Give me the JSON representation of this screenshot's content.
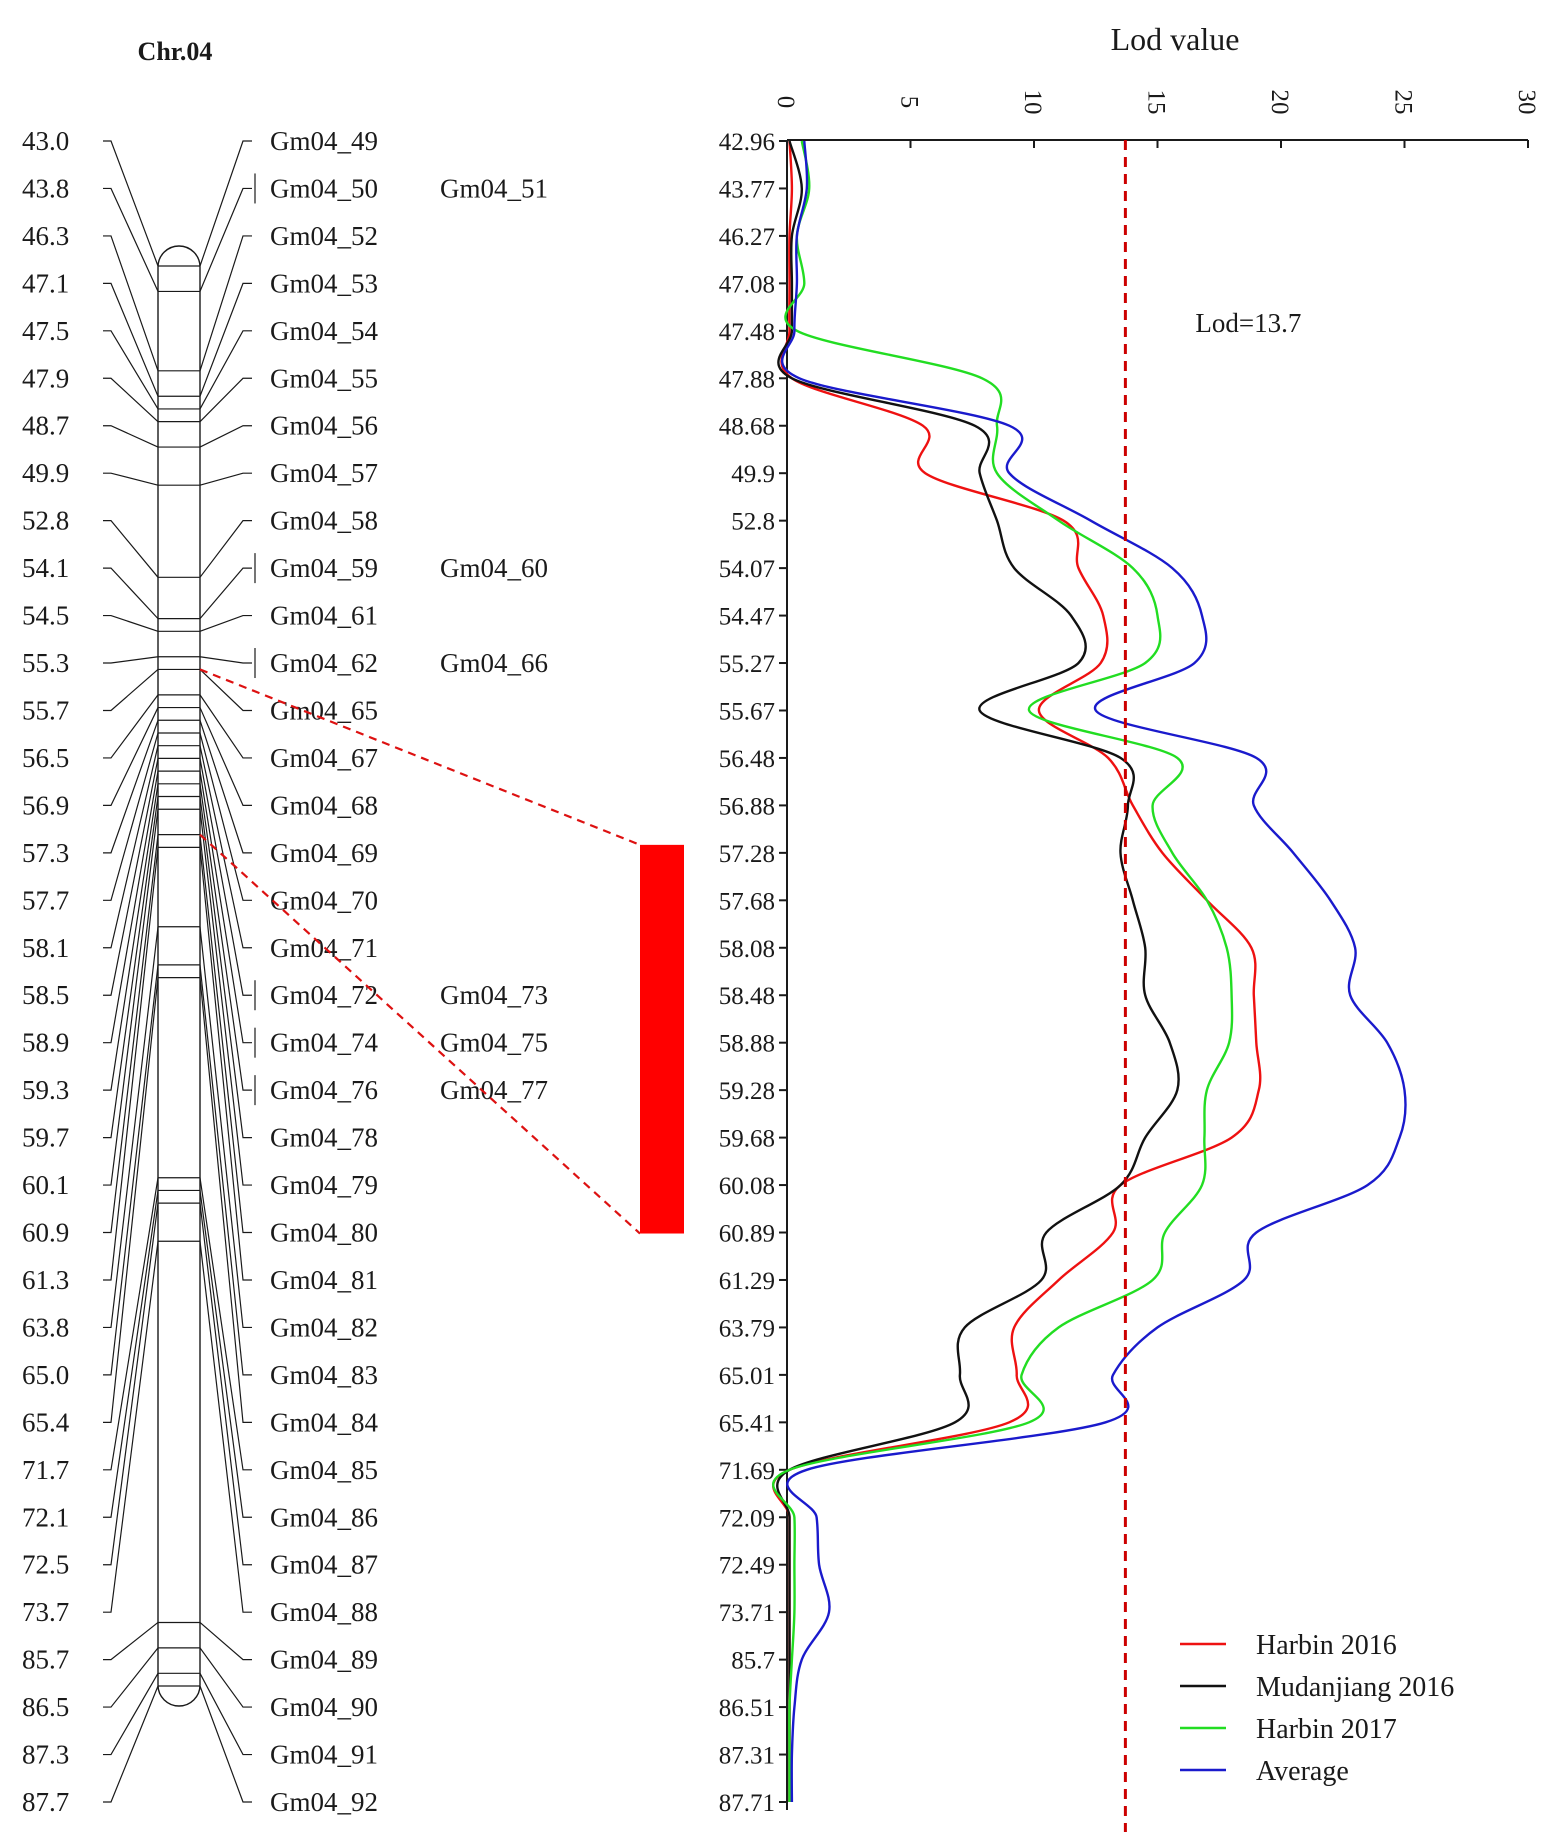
{
  "linkage_map": {
    "title": "Chr.04",
    "positions": [
      "43.0",
      "43.8",
      "46.3",
      "47.1",
      "47.5",
      "47.9",
      "48.7",
      "49.9",
      "52.8",
      "54.1",
      "54.5",
      "55.3",
      "55.7",
      "56.5",
      "56.9",
      "57.3",
      "57.7",
      "58.1",
      "58.5",
      "58.9",
      "59.3",
      "59.7",
      "60.1",
      "60.9",
      "61.3",
      "63.8",
      "65.0",
      "65.4",
      "71.7",
      "72.1",
      "72.5",
      "73.7",
      "85.7",
      "86.5",
      "87.3",
      "87.7"
    ],
    "markers": [
      "Gm04_49",
      "Gm04_50",
      "Gm04_52",
      "Gm04_53",
      "Gm04_54",
      "Gm04_55",
      "Gm04_56",
      "Gm04_57",
      "Gm04_58",
      "Gm04_59",
      "Gm04_61",
      "Gm04_62",
      "Gm04_65",
      "Gm04_67",
      "Gm04_68",
      "Gm04_69",
      "Gm04_70",
      "Gm04_71",
      "Gm04_72",
      "Gm04_74",
      "Gm04_76",
      "Gm04_78",
      "Gm04_79",
      "Gm04_80",
      "Gm04_81",
      "Gm04_82",
      "Gm04_83",
      "Gm04_84",
      "Gm04_85",
      "Gm04_86",
      "Gm04_87",
      "Gm04_88",
      "Gm04_89",
      "Gm04_90",
      "Gm04_91",
      "Gm04_92"
    ],
    "co_located_markers": [
      {
        "row": 1,
        "name": "Gm04_51"
      },
      {
        "row": 9,
        "name": "Gm04_60"
      },
      {
        "row": 11,
        "name": "Gm04_66"
      },
      {
        "row": 18,
        "name": "Gm04_73"
      },
      {
        "row": 19,
        "name": "Gm04_75"
      },
      {
        "row": 20,
        "name": "Gm04_77"
      }
    ],
    "qtl_interval": {
      "from": "55.7",
      "to": "60.9",
      "color": "#ff0000"
    }
  },
  "chart_data": {
    "type": "line",
    "orientation": "horizontal-values",
    "xlabel": "Lod value",
    "xlim": [
      0,
      30
    ],
    "xticks": [
      "0",
      "5",
      "10",
      "15",
      "20",
      "25",
      "30"
    ],
    "categories": [
      "42.96",
      "43.77",
      "46.27",
      "47.08",
      "47.48",
      "47.88",
      "48.68",
      "49.9",
      "52.8",
      "54.07",
      "54.47",
      "55.27",
      "55.67",
      "56.48",
      "56.88",
      "57.28",
      "57.68",
      "58.08",
      "58.48",
      "58.88",
      "59.28",
      "59.68",
      "60.08",
      "60.89",
      "61.29",
      "63.79",
      "65.01",
      "65.41",
      "71.69",
      "72.09",
      "72.49",
      "73.71",
      "85.7",
      "86.51",
      "87.31",
      "87.71"
    ],
    "threshold": {
      "value": 13.7,
      "label": "Lod=13.7",
      "color": "#cc0000"
    },
    "series": [
      {
        "name": "Harbin 2016",
        "color": "#ee1111",
        "values": [
          0.1,
          0.2,
          0.1,
          0.1,
          0.1,
          0.2,
          5.5,
          5.6,
          11.2,
          11.8,
          12.8,
          12.7,
          10.2,
          13.0,
          14.0,
          15.2,
          17.0,
          18.8,
          18.9,
          19.0,
          19.1,
          18.0,
          13.5,
          13.2,
          11.0,
          9.2,
          9.3,
          9.0,
          0.1,
          0.1,
          0.1,
          0.1,
          0.1,
          0.1,
          0.1,
          0.1
        ]
      },
      {
        "name": "Mudanjiang 2016",
        "color": "#111111",
        "values": [
          0.1,
          0.6,
          0.2,
          0.2,
          0.2,
          0.2,
          7.6,
          7.8,
          8.5,
          9.2,
          11.5,
          11.8,
          7.8,
          13.5,
          13.8,
          13.5,
          14.0,
          14.5,
          14.5,
          15.5,
          15.8,
          14.5,
          13.5,
          10.5,
          10.3,
          7.2,
          7.0,
          6.8,
          0.1,
          0.1,
          0.1,
          0.1,
          0.1,
          0.1,
          0.1,
          0.1
        ]
      },
      {
        "name": "Harbin 2017",
        "color": "#22dd22",
        "values": [
          0.6,
          0.9,
          0.4,
          0.7,
          0.4,
          7.9,
          8.5,
          8.5,
          11.0,
          14.0,
          15.0,
          14.5,
          9.8,
          15.8,
          14.8,
          15.6,
          17.0,
          17.8,
          18.0,
          17.9,
          17.0,
          16.9,
          16.8,
          15.3,
          14.8,
          11.0,
          9.5,
          9.8,
          0.1,
          0.3,
          0.3,
          0.3,
          0.2,
          0.1,
          0.1,
          0.1
        ]
      },
      {
        "name": "Average",
        "color": "#1a1acc",
        "values": [
          0.7,
          0.8,
          0.4,
          0.4,
          0.3,
          0.5,
          9.0,
          9.0,
          12.3,
          15.6,
          16.8,
          16.5,
          12.5,
          19.0,
          18.9,
          20.5,
          22.0,
          23.0,
          22.8,
          24.3,
          25.0,
          24.8,
          23.5,
          19.0,
          18.5,
          15.0,
          13.2,
          12.9,
          0.8,
          1.2,
          1.3,
          1.7,
          0.6,
          0.3,
          0.2,
          0.2
        ]
      }
    ],
    "legend": {
      "position": "bottom-right",
      "entries": [
        "Harbin 2016",
        "Mudanjiang 2016",
        "Harbin 2017",
        "Average"
      ]
    }
  }
}
